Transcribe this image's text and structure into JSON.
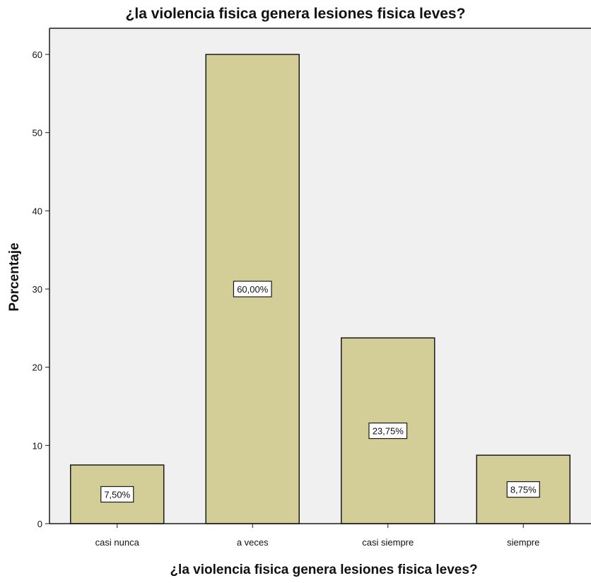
{
  "chart_data": {
    "type": "bar",
    "title": "¿la violencia fisica genera lesiones fisica leves?",
    "xlabel": "¿la violencia fisica genera lesiones fisica leves?",
    "ylabel": "Porcentaje",
    "categories": [
      "casi nunca",
      "a veces",
      "casi siempre",
      "siempre"
    ],
    "values": [
      7.5,
      60.0,
      23.75,
      8.75
    ],
    "data_labels": [
      "7,50%",
      "60,00%",
      "23,75%",
      "8,75%"
    ],
    "ylim": [
      0,
      65
    ],
    "yticks": [
      0,
      10,
      20,
      30,
      40,
      50,
      60
    ],
    "grid": false,
    "legend": "none"
  },
  "colors": {
    "plot_background": "#f0f0f0",
    "bar_fill": "#d3ce97",
    "bar_stroke": "#1a1a1a",
    "axis": "#1a1a1a"
  }
}
